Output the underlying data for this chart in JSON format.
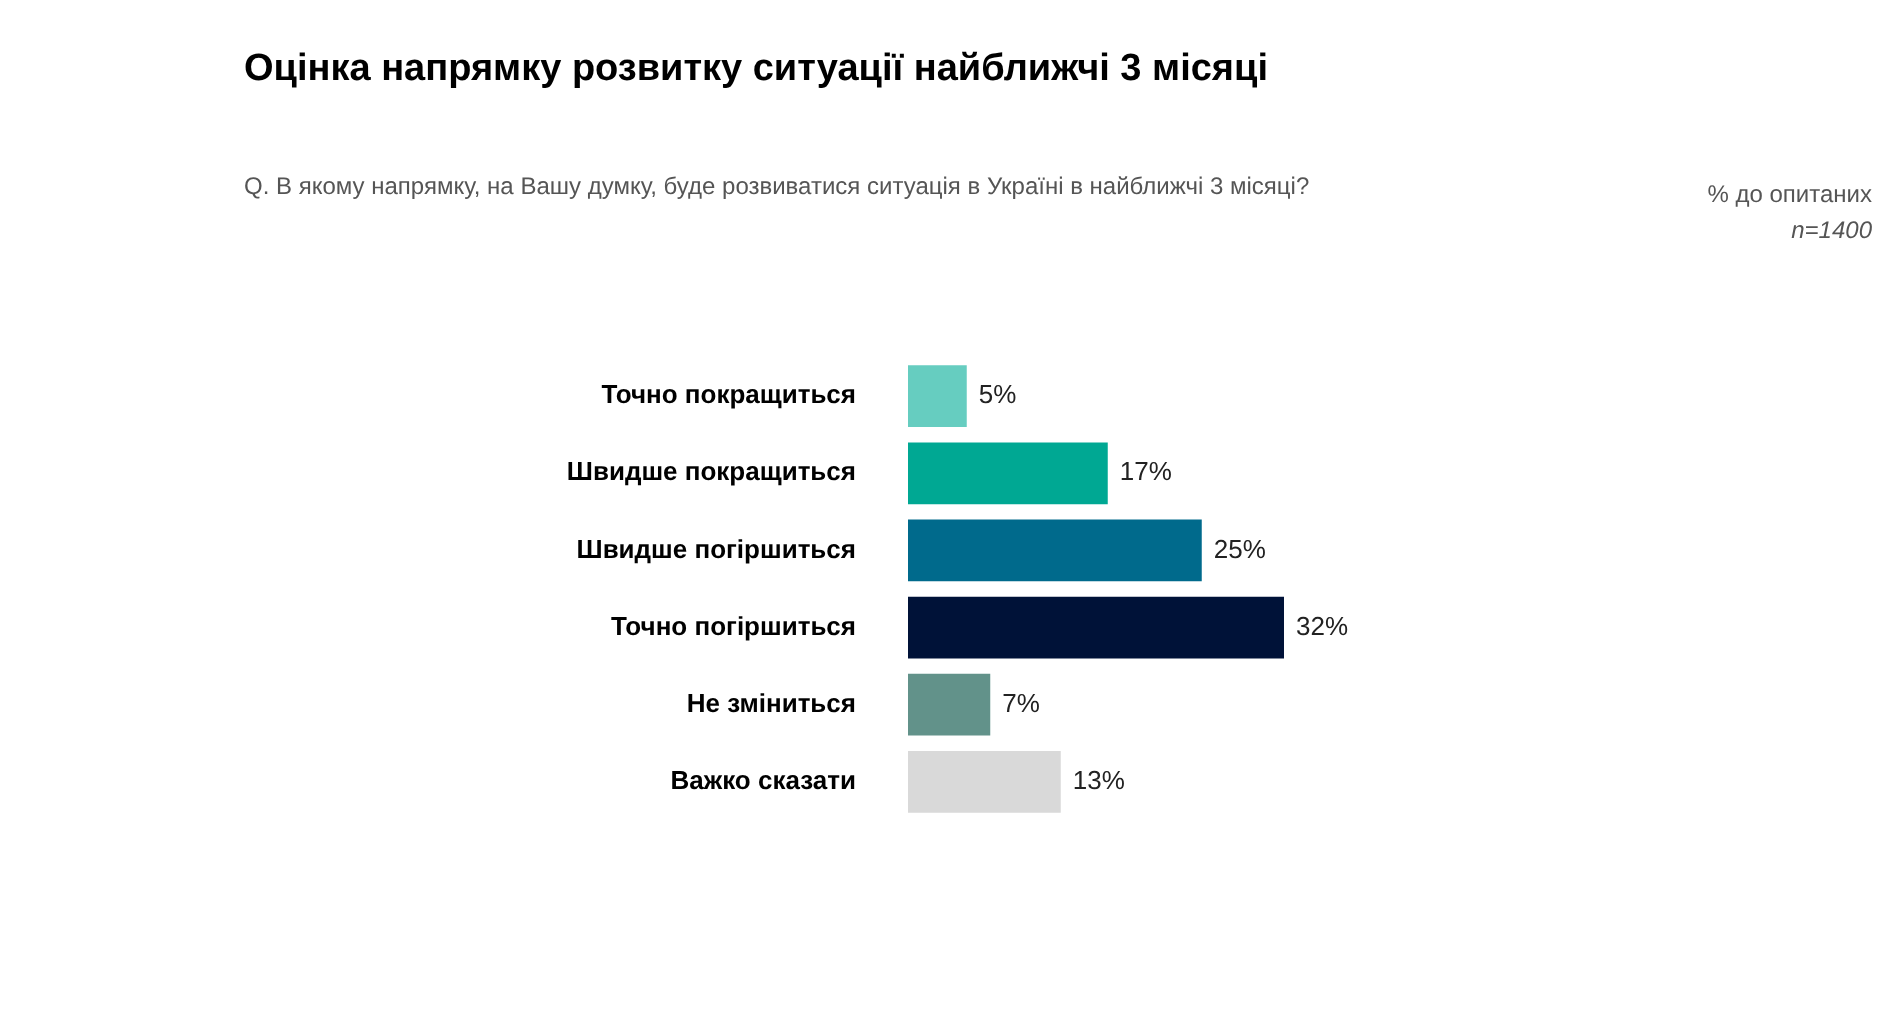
{
  "chart_data": {
    "type": "bar",
    "orientation": "horizontal",
    "title": "Оцінка напрямку розвитку ситуації найближчі 3 місяці",
    "subtitle": "Q. В якому напрямку, на Вашу думку, буде розвиватися ситуація в Україні в найближчі 3 місяці?",
    "annotations": [
      "% до опитаних",
      "n=1400"
    ],
    "categories": [
      "Точно покращиться",
      "Швидше покращиться",
      "Швидше погіршиться",
      "Точно погіршиться",
      "Не зміниться",
      "Важко сказати"
    ],
    "values": [
      5,
      17,
      25,
      32,
      7,
      13
    ],
    "colors": [
      "#66cdc0",
      "#00a893",
      "#006a8c",
      "#001238",
      "#62928a",
      "#d9d9d9"
    ],
    "value_labels": [
      "5%",
      "17%",
      "25%",
      "32%",
      "7%",
      "13%"
    ],
    "legend": false
  }
}
